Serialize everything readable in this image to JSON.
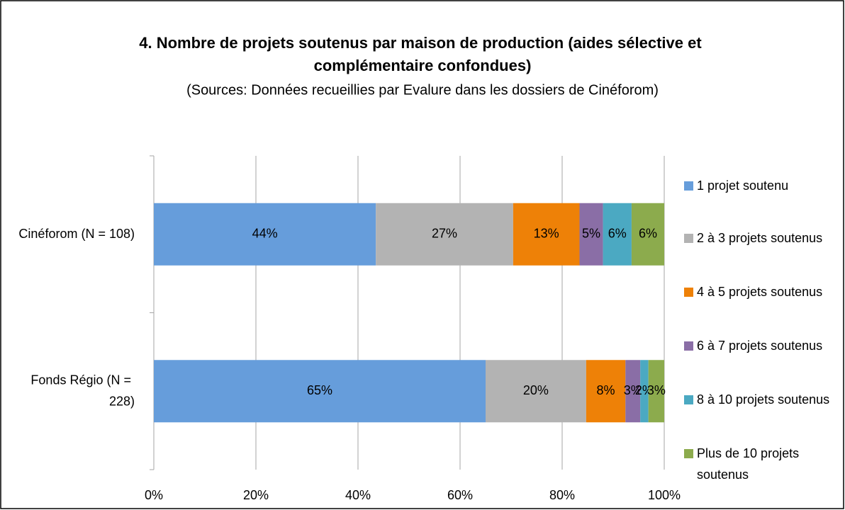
{
  "chart_data": {
    "type": "stacked_bar_horizontal",
    "title": "4. Nombre de projets soutenus par maison de production (aides sélective et complémentaire confondues)",
    "subtitle": "(Sources: Données recueillies par Evalure dans les dossiers de Cinéforom)",
    "categories": [
      "Cinéforom (N = 108)",
      "Fonds Régio (N = 228)"
    ],
    "series": [
      {
        "name": "1 projet soutenu",
        "color": "#669ddb",
        "values": [
          43.5,
          65.0
        ],
        "value_labels": [
          "44%",
          "65%"
        ]
      },
      {
        "name": "2 à 3 projets soutenus",
        "color": "#b3b3b3",
        "values": [
          26.9,
          19.7
        ],
        "value_labels": [
          "27%",
          "20%"
        ]
      },
      {
        "name": "4 à 5 projets soutenus",
        "color": "#ee8107",
        "values": [
          13.0,
          7.7
        ],
        "value_labels": [
          "13%",
          "8%"
        ]
      },
      {
        "name": "6 à 7 projets soutenus",
        "color": "#8a6ea6",
        "values": [
          4.6,
          2.9
        ],
        "value_labels": [
          "5%",
          "3%"
        ]
      },
      {
        "name": "8 à 10 projets soutenus",
        "color": "#4ba9c2",
        "values": [
          5.6,
          1.6
        ],
        "value_labels": [
          "6%",
          "2%"
        ]
      },
      {
        "name": "Plus de 10 projets soutenus",
        "color": "#8cab4d",
        "values": [
          6.4,
          3.1
        ],
        "value_labels": [
          "6%",
          "3%"
        ]
      }
    ],
    "xlim": [
      0,
      100
    ],
    "xticks": [
      {
        "value": 0,
        "label": "0%"
      },
      {
        "value": 20,
        "label": "20%"
      },
      {
        "value": 40,
        "label": "40%"
      },
      {
        "value": 60,
        "label": "60%"
      },
      {
        "value": 80,
        "label": "80%"
      },
      {
        "value": 100,
        "label": "100%"
      }
    ],
    "grid": true,
    "legend": "right"
  }
}
